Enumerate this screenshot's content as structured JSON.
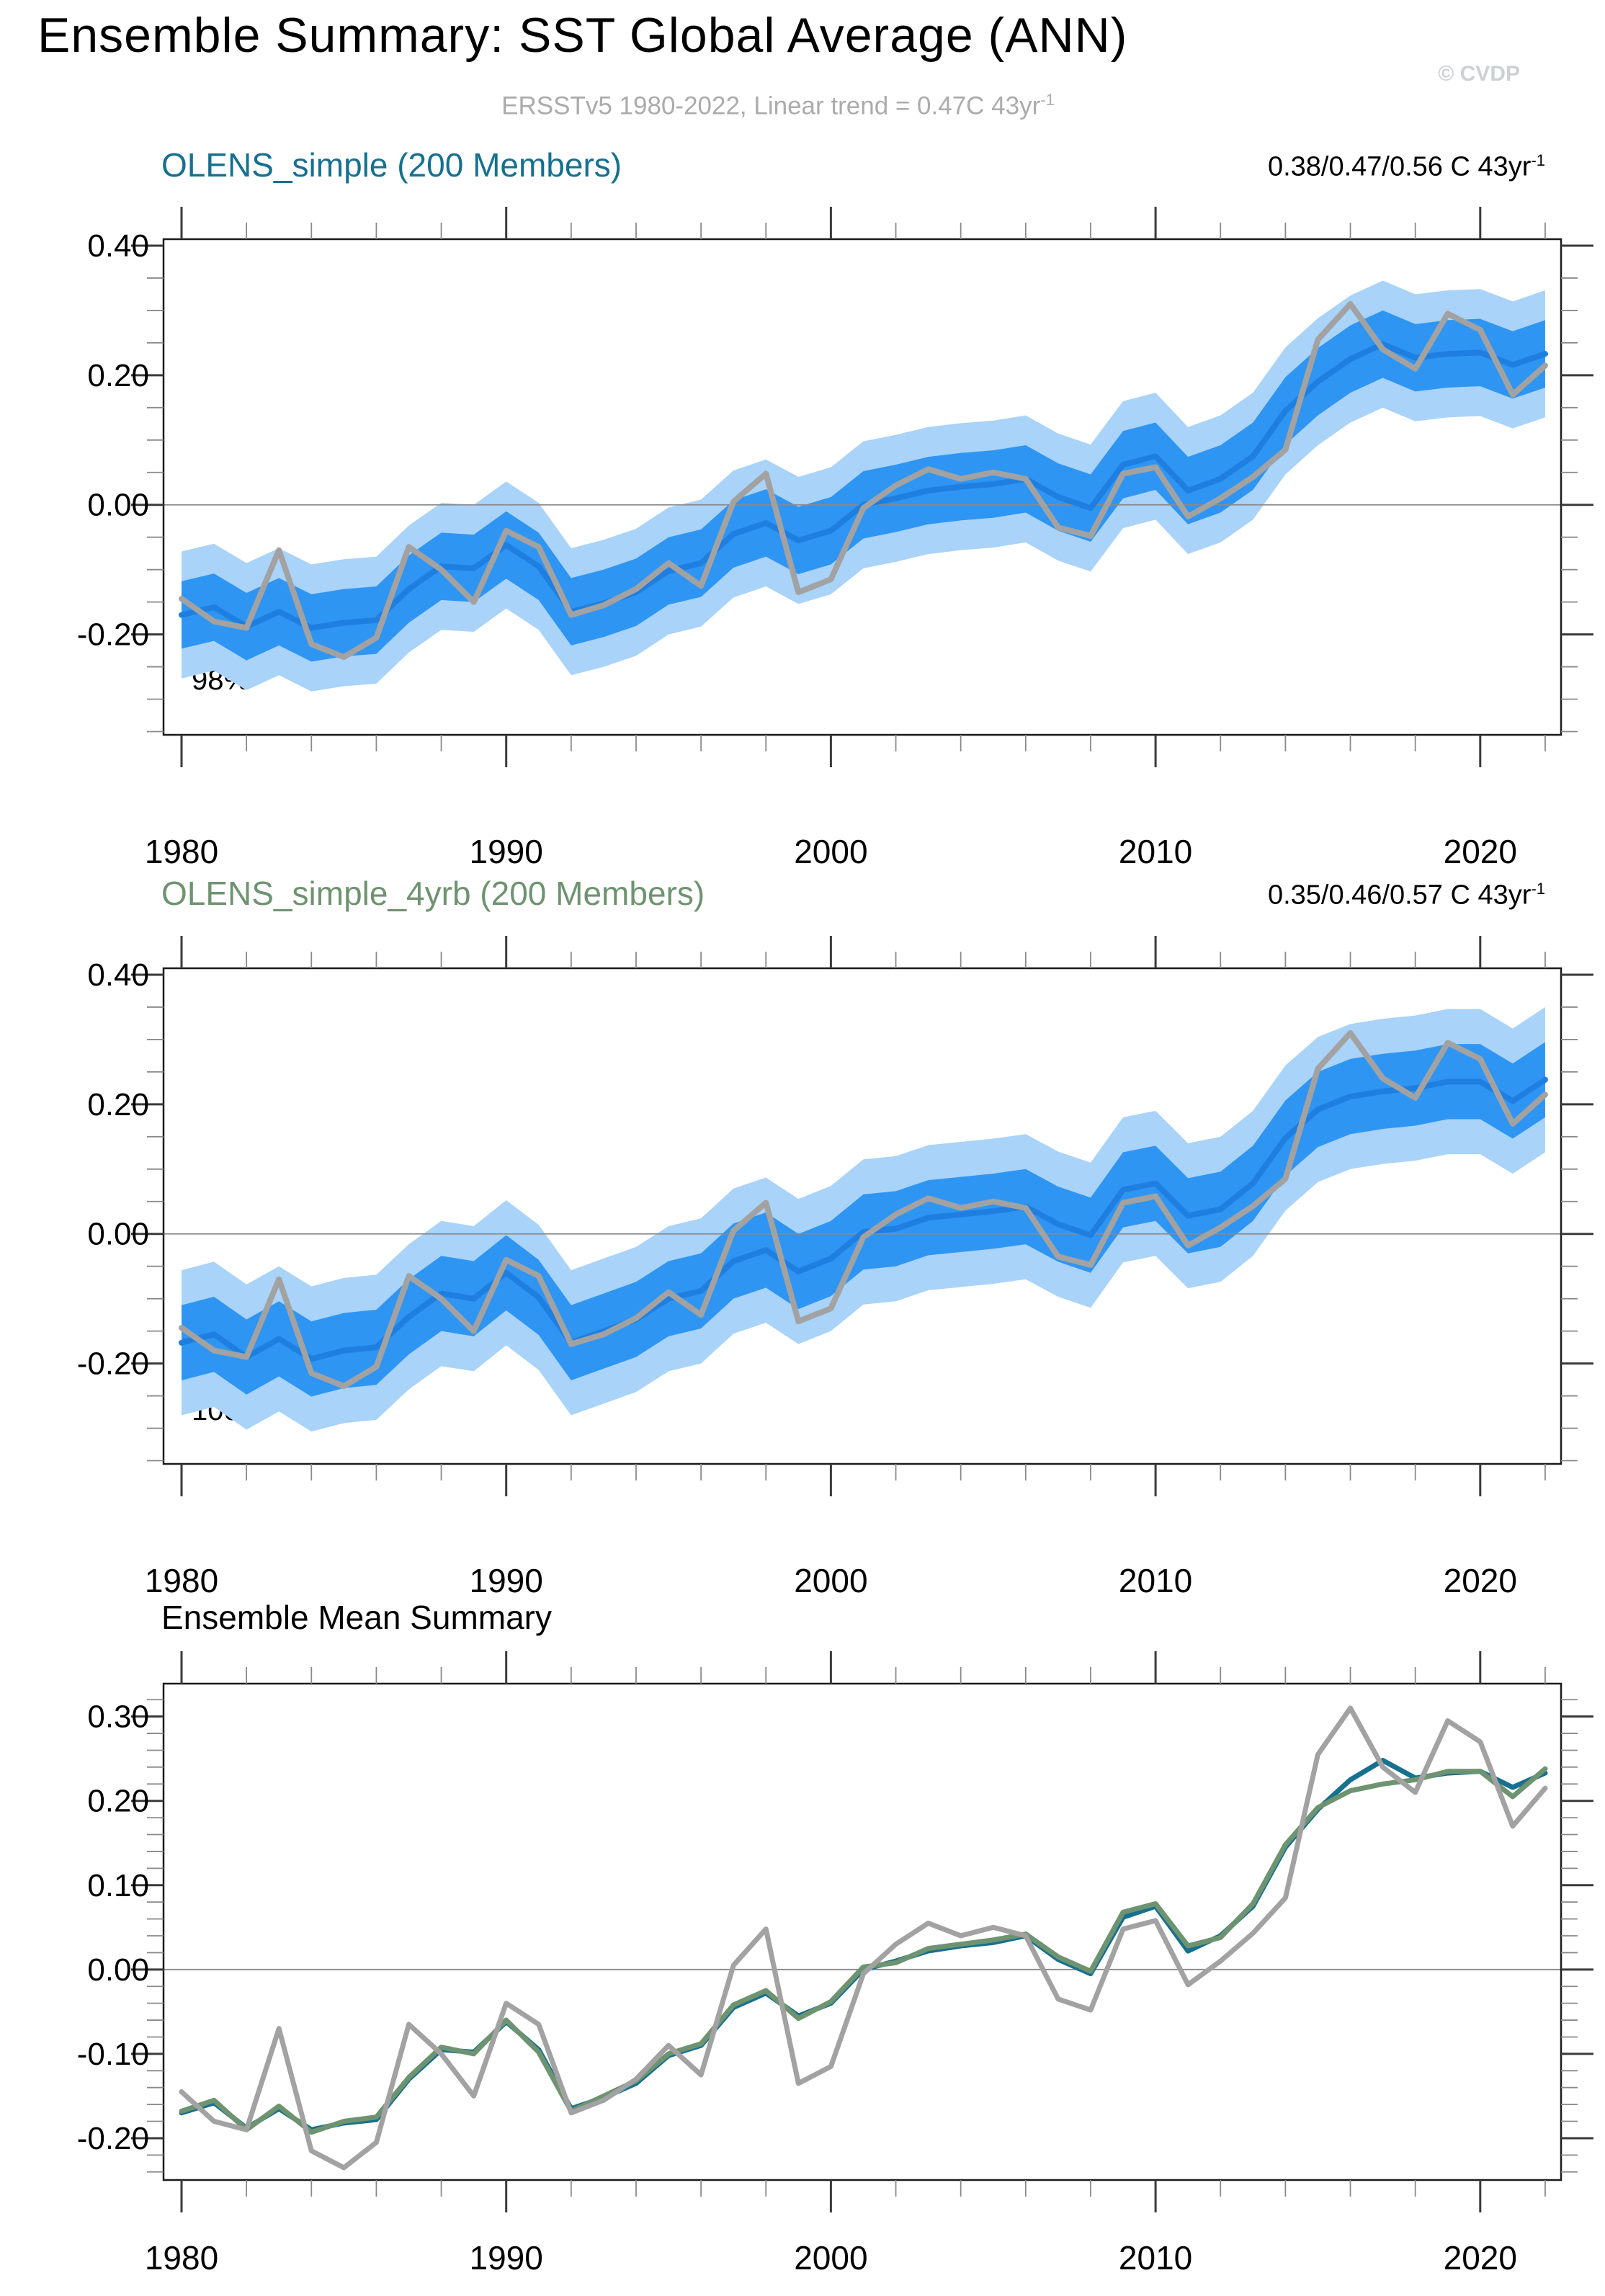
{
  "page": {
    "title": "Ensemble Summary: SST Global Average (ANN)",
    "watermark": "© CVDP",
    "subtitle": "ERSSTv5 1980-2022, Linear trend = 0.47C 43yr",
    "subtitle_sup": "-1"
  },
  "colors": {
    "band_outer": "#A9D3F8",
    "band_inner": "#2F95F3",
    "ensemble_mean_line": "#1E7FE0",
    "observation_line": "#A2A2A2",
    "olens_simple": "#16708F",
    "olens_simple_4yrb": "#6E9370",
    "zero_gridline": "#8a8a8a",
    "frame": "#1a1a1a",
    "tick_major": "#3a3a3a",
    "tick_minor": "#8a8a8a",
    "axis_text": "#000000"
  },
  "years": [
    1980,
    1981,
    1982,
    1983,
    1984,
    1985,
    1986,
    1987,
    1988,
    1989,
    1990,
    1991,
    1992,
    1993,
    1994,
    1995,
    1996,
    1997,
    1998,
    1999,
    2000,
    2001,
    2002,
    2003,
    2004,
    2005,
    2006,
    2007,
    2008,
    2009,
    2010,
    2011,
    2012,
    2013,
    2014,
    2015,
    2016,
    2017,
    2018,
    2019,
    2020,
    2021,
    2022
  ],
  "x_axis": {
    "range": [
      1979.45,
      2022.5
    ],
    "major_years": [
      1980,
      1990,
      2000,
      2010,
      2020
    ],
    "major_labels": [
      "1980",
      "1990",
      "2000",
      "2010",
      "2020"
    ],
    "minor_step_years": 2
  },
  "chart_data": [
    {
      "type": "area",
      "title": "OLENS_simple (200 Members)",
      "title_color": "olens_simple",
      "trend_label": "0.38/0.47/0.56 C 43yr",
      "trend_sup": "-1",
      "coverage_label": "98%",
      "ylabel": "",
      "ylim": [
        -0.355,
        0.41
      ],
      "y_axis": {
        "major_values": [
          0.4,
          0.2,
          0.0,
          -0.2
        ],
        "major_labels": [
          "0.40",
          "0.20",
          "0.00",
          "-0.20"
        ],
        "minor_step": 0.05
      },
      "grid_zero": true,
      "bands": {
        "outer_halfwidth": 0.098,
        "inner_halfwidth": 0.052,
        "outer_color": "band_outer",
        "inner_color": "band_inner"
      },
      "series": [
        {
          "name": "ensemble_mean",
          "color": "ensemble_mean_line",
          "width": 8,
          "values": [
            -0.17,
            -0.158,
            -0.188,
            -0.165,
            -0.19,
            -0.182,
            -0.178,
            -0.13,
            -0.095,
            -0.098,
            -0.062,
            -0.095,
            -0.165,
            -0.152,
            -0.135,
            -0.102,
            -0.09,
            -0.045,
            -0.028,
            -0.055,
            -0.04,
            0.0,
            0.01,
            0.022,
            0.028,
            0.032,
            0.04,
            0.012,
            -0.005,
            0.062,
            0.075,
            0.022,
            0.04,
            0.075,
            0.145,
            0.19,
            0.225,
            0.248,
            0.227,
            0.233,
            0.235,
            0.216,
            0.233
          ]
        },
        {
          "name": "ERSSTv5_observations",
          "color": "observation_line",
          "width": 8,
          "values": [
            -0.145,
            -0.18,
            -0.19,
            -0.07,
            -0.215,
            -0.235,
            -0.205,
            -0.065,
            -0.1,
            -0.15,
            -0.04,
            -0.065,
            -0.17,
            -0.155,
            -0.13,
            -0.09,
            -0.125,
            0.005,
            0.048,
            -0.135,
            -0.115,
            -0.005,
            0.03,
            0.055,
            0.04,
            0.05,
            0.04,
            -0.035,
            -0.048,
            0.048,
            0.058,
            -0.018,
            0.01,
            0.043,
            0.085,
            0.255,
            0.31,
            0.24,
            0.21,
            0.295,
            0.27,
            0.17,
            0.215
          ]
        }
      ]
    },
    {
      "type": "area",
      "title": "OLENS_simple_4yrb (200 Members)",
      "title_color": "olens_simple_4yrb",
      "trend_label": "0.35/0.46/0.57 C 43yr",
      "trend_sup": "-1",
      "coverage_label": "100%",
      "ylabel": "",
      "ylim": [
        -0.355,
        0.41
      ],
      "y_axis": {
        "major_values": [
          0.4,
          0.2,
          0.0,
          -0.2
        ],
        "major_labels": [
          "0.40",
          "0.20",
          "0.00",
          "-0.20"
        ],
        "minor_step": 0.05
      },
      "grid_zero": true,
      "bands": {
        "outer_halfwidth": 0.112,
        "inner_halfwidth": 0.058,
        "outer_color": "band_outer",
        "inner_color": "band_inner"
      },
      "series": [
        {
          "name": "ensemble_mean",
          "color": "ensemble_mean_line",
          "width": 8,
          "values": [
            -0.168,
            -0.155,
            -0.19,
            -0.162,
            -0.193,
            -0.18,
            -0.175,
            -0.128,
            -0.092,
            -0.1,
            -0.06,
            -0.098,
            -0.168,
            -0.15,
            -0.132,
            -0.1,
            -0.088,
            -0.042,
            -0.025,
            -0.058,
            -0.038,
            0.003,
            0.008,
            0.025,
            0.03,
            0.035,
            0.042,
            0.015,
            -0.002,
            0.068,
            0.078,
            0.028,
            0.038,
            0.078,
            0.148,
            0.192,
            0.212,
            0.22,
            0.225,
            0.235,
            0.235,
            0.205,
            0.238
          ]
        },
        {
          "name": "ERSSTv5_observations",
          "color": "observation_line",
          "width": 8,
          "values": [
            -0.145,
            -0.18,
            -0.19,
            -0.07,
            -0.215,
            -0.235,
            -0.205,
            -0.065,
            -0.1,
            -0.15,
            -0.04,
            -0.065,
            -0.17,
            -0.155,
            -0.13,
            -0.09,
            -0.125,
            0.005,
            0.048,
            -0.135,
            -0.115,
            -0.005,
            0.03,
            0.055,
            0.04,
            0.05,
            0.04,
            -0.035,
            -0.048,
            0.048,
            0.058,
            -0.018,
            0.01,
            0.043,
            0.085,
            0.255,
            0.31,
            0.24,
            0.21,
            0.295,
            0.27,
            0.17,
            0.215
          ]
        }
      ]
    },
    {
      "type": "line",
      "title": "Ensemble Mean Summary",
      "title_color": "axis_text",
      "trend_label": "",
      "trend_sup": "",
      "coverage_label": "",
      "ylabel": "",
      "ylim": [
        -0.2496,
        0.339
      ],
      "y_axis": {
        "major_values": [
          0.3,
          0.2,
          0.1,
          0.0,
          -0.1,
          -0.2
        ],
        "major_labels": [
          "0.30",
          "0.20",
          "0.10",
          "0.00",
          "-0.10",
          "-0.20"
        ],
        "minor_step": 0.02
      },
      "grid_zero": true,
      "series": [
        {
          "name": "OLENS_simple_mean",
          "color": "olens_simple",
          "width": 7,
          "values": [
            -0.17,
            -0.158,
            -0.188,
            -0.165,
            -0.19,
            -0.182,
            -0.178,
            -0.13,
            -0.095,
            -0.098,
            -0.062,
            -0.095,
            -0.165,
            -0.152,
            -0.135,
            -0.102,
            -0.09,
            -0.045,
            -0.028,
            -0.055,
            -0.04,
            0.0,
            0.01,
            0.022,
            0.028,
            0.032,
            0.04,
            0.012,
            -0.005,
            0.062,
            0.075,
            0.022,
            0.04,
            0.075,
            0.145,
            0.19,
            0.225,
            0.248,
            0.227,
            0.233,
            0.235,
            0.216,
            0.233
          ]
        },
        {
          "name": "OLENS_simple_4yrb_mean",
          "color": "olens_simple_4yrb",
          "width": 7,
          "values": [
            -0.168,
            -0.155,
            -0.19,
            -0.162,
            -0.193,
            -0.18,
            -0.175,
            -0.128,
            -0.092,
            -0.1,
            -0.06,
            -0.098,
            -0.168,
            -0.15,
            -0.132,
            -0.1,
            -0.088,
            -0.042,
            -0.025,
            -0.058,
            -0.038,
            0.003,
            0.008,
            0.025,
            0.03,
            0.035,
            0.042,
            0.015,
            -0.002,
            0.068,
            0.078,
            0.028,
            0.038,
            0.078,
            0.148,
            0.192,
            0.212,
            0.22,
            0.225,
            0.235,
            0.235,
            0.205,
            0.238
          ]
        },
        {
          "name": "ERSSTv5_observations",
          "color": "observation_line",
          "width": 7,
          "values": [
            -0.145,
            -0.18,
            -0.19,
            -0.07,
            -0.215,
            -0.235,
            -0.205,
            -0.065,
            -0.1,
            -0.15,
            -0.04,
            -0.065,
            -0.17,
            -0.155,
            -0.13,
            -0.09,
            -0.125,
            0.005,
            0.048,
            -0.135,
            -0.115,
            -0.005,
            0.03,
            0.055,
            0.04,
            0.05,
            0.04,
            -0.035,
            -0.048,
            0.048,
            0.058,
            -0.018,
            0.01,
            0.043,
            0.085,
            0.255,
            0.31,
            0.24,
            0.21,
            0.295,
            0.27,
            0.17,
            0.215
          ]
        }
      ]
    }
  ]
}
